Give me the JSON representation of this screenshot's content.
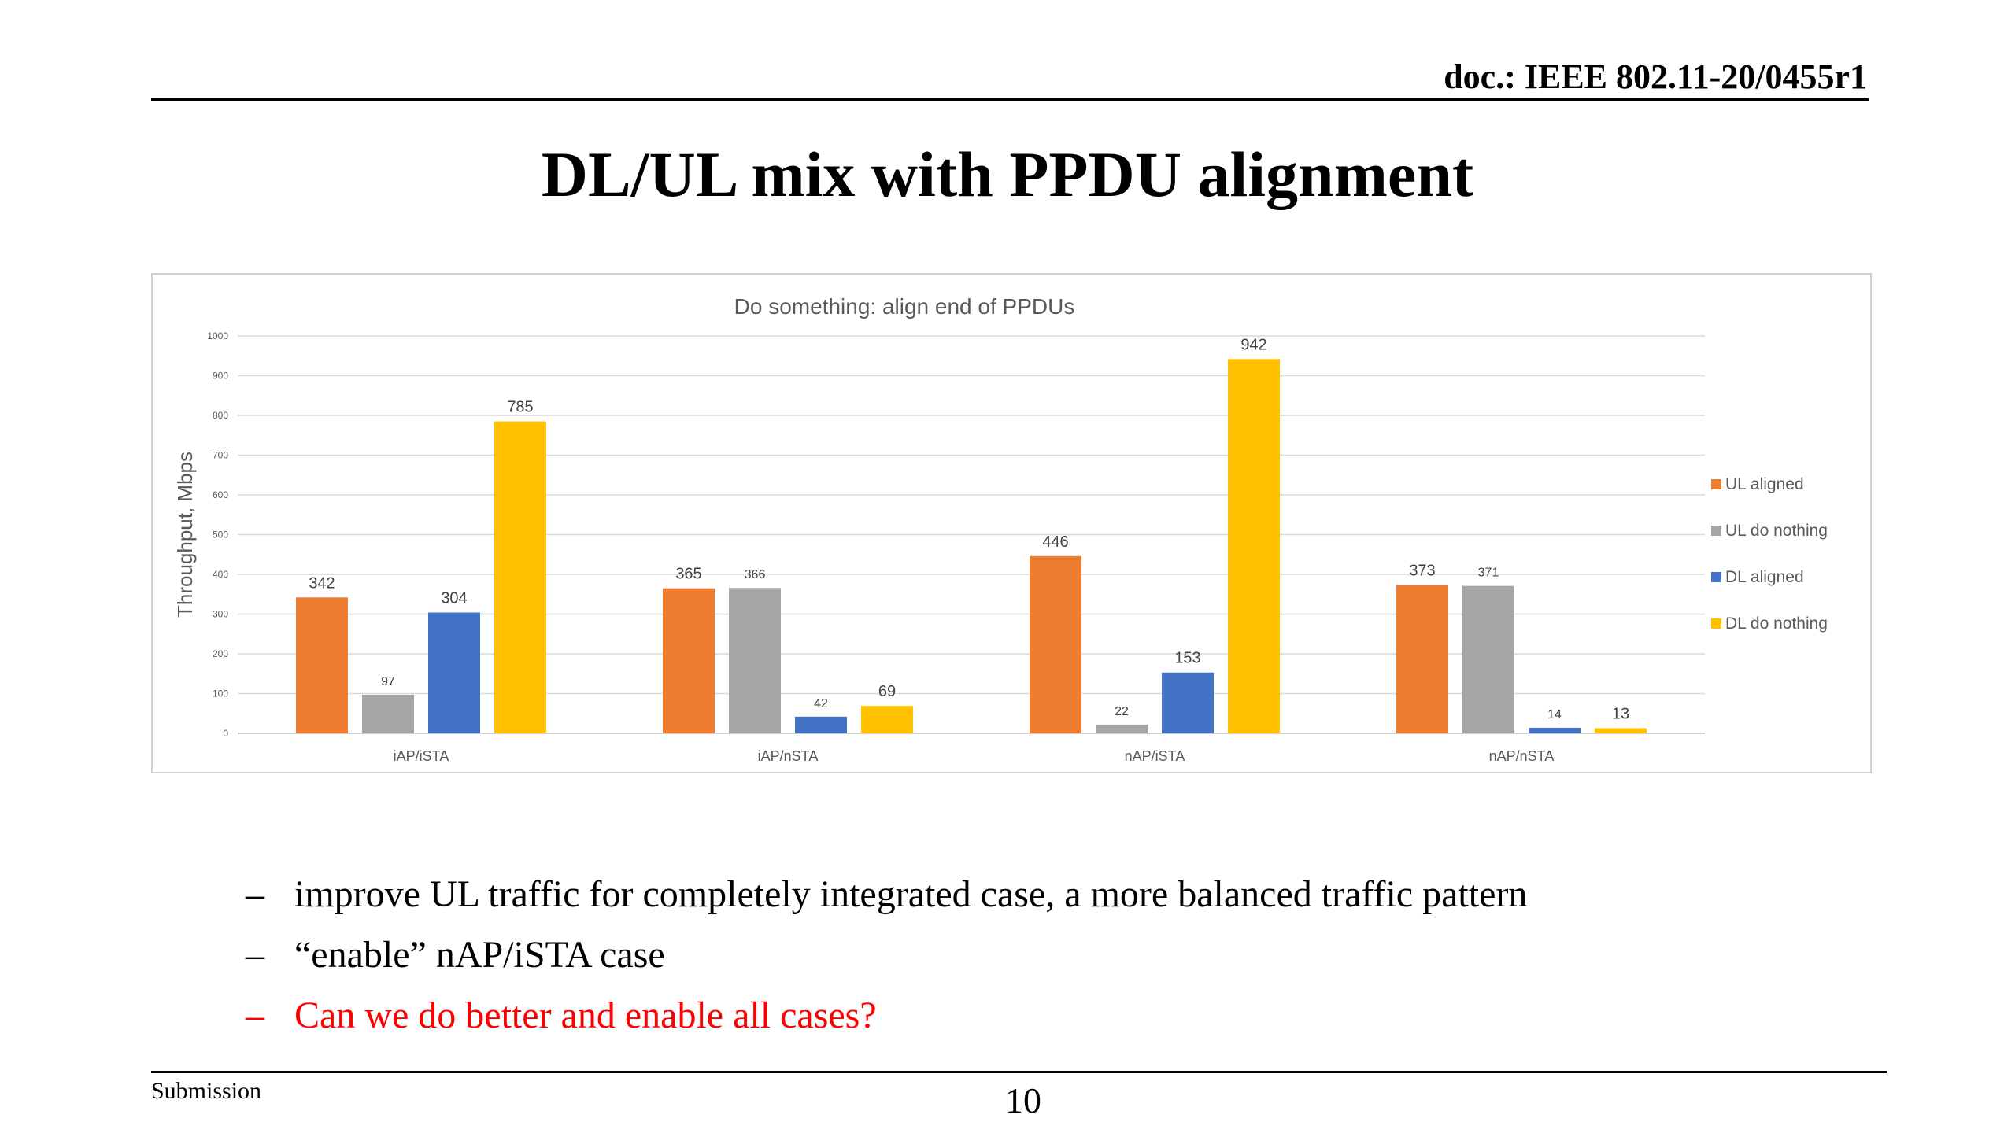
{
  "header": {
    "doc_ref": "doc.: IEEE 802.11-20/0455r1"
  },
  "slide": {
    "title": "DL/UL mix with PPDU alignment"
  },
  "bullets": [
    {
      "text": "improve UL traffic for completely integrated case, a more balanced traffic pattern",
      "color": "#000000"
    },
    {
      "text": "“enable” nAP/iSTA case",
      "color": "#000000"
    },
    {
      "text": "Can we do better and enable all cases?",
      "color": "#ff0000"
    }
  ],
  "bullet_marker": "–",
  "footer": {
    "left": "Submission",
    "page_number": "10"
  },
  "chart_data": {
    "type": "bar",
    "title": "Do something: align end of PPDUs",
    "xlabel": "",
    "ylabel": "Throughput, Mbps",
    "ylim": [
      0,
      1000
    ],
    "yticks": [
      0,
      100,
      200,
      300,
      400,
      500,
      600,
      700,
      800,
      900,
      1000
    ],
    "grid": true,
    "legend_position": "right",
    "categories": [
      "iAP/iSTA",
      "iAP/nSTA",
      "nAP/iSTA",
      "nAP/nSTA"
    ],
    "series": [
      {
        "name": "UL aligned",
        "color": "#ED7D31",
        "values": [
          342,
          365,
          446,
          373
        ]
      },
      {
        "name": "UL do nothing",
        "color": "#A5A5A5",
        "values": [
          97,
          366,
          22,
          371
        ]
      },
      {
        "name": "DL aligned",
        "color": "#4472C4",
        "values": [
          304,
          42,
          153,
          14
        ]
      },
      {
        "name": "DL do nothing",
        "color": "#FFC000",
        "values": [
          785,
          69,
          942,
          13
        ]
      }
    ]
  }
}
